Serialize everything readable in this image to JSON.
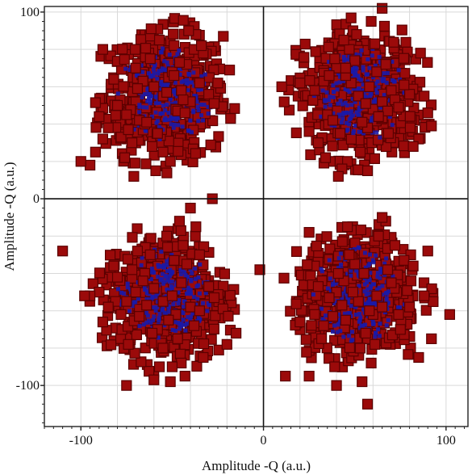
{
  "chart_data": {
    "type": "scatter",
    "title": "",
    "xlabel": "Amplitude -Q (a.u.)",
    "ylabel": "Amplitude -Q (a.u.)",
    "xlim": [
      -120,
      112
    ],
    "ylim": [
      -122,
      103
    ],
    "x_ticks": [
      -100,
      0,
      100
    ],
    "y_ticks": [
      100,
      0,
      -100
    ],
    "grid": true,
    "legend": "none",
    "marker": "square",
    "colors": {
      "fill": "#9b0a0a",
      "edge": "#5a0000",
      "dense_core": "#1a1aa8"
    },
    "series": [
      {
        "x": [
          -55,
          -60,
          -48,
          -70,
          -40,
          -65,
          -52,
          -45,
          -75,
          -35,
          -80,
          -58,
          -42,
          -68,
          -50,
          -30,
          -85,
          -62,
          -47,
          -72,
          -38,
          -55,
          -66,
          -44,
          -78,
          -33,
          -90,
          -53,
          -57,
          -49,
          -61,
          -43,
          -69,
          -37,
          -74,
          -27,
          -82,
          -51,
          -64,
          -46,
          -88,
          -95,
          -100,
          -22,
          -25,
          -88,
          -76,
          -34,
          -59,
          -41,
          -71,
          -92,
          -18
        ],
        "y": [
          55,
          60,
          48,
          70,
          52,
          40,
          65,
          58,
          45,
          62,
          50,
          35,
          72,
          42,
          68,
          56,
          38,
          75,
          47,
          30,
          80,
          25,
          63,
          53,
          33,
          78,
          44,
          57,
          85,
          66,
          28,
          46,
          59,
          88,
          37,
          51,
          64,
          20,
          41,
          73,
          32,
          18,
          20,
          87,
          62,
          80,
          22,
          82,
          15,
          90,
          12,
          25,
          43
        ]
      },
      {
        "x": [
          52,
          48,
          60,
          40,
          65,
          55,
          45,
          70,
          35,
          58,
          42,
          75,
          50,
          38,
          62,
          30,
          80,
          47,
          57,
          68,
          33,
          53,
          44,
          72,
          28,
          85,
          49,
          63,
          39,
          77,
          56,
          25,
          90,
          46,
          61,
          36,
          82,
          54,
          43,
          67,
          20,
          88,
          59,
          41,
          74,
          10,
          92,
          51,
          34,
          86,
          65,
          57,
          45
        ],
        "y": [
          55,
          62,
          48,
          70,
          52,
          40,
          66,
          58,
          45,
          60,
          35,
          50,
          74,
          42,
          68,
          30,
          56,
          80,
          38,
          47,
          63,
          25,
          85,
          53,
          58,
          32,
          90,
          44,
          75,
          61,
          51,
          36,
          46,
          20,
          83,
          66,
          28,
          41,
          16,
          72,
          62,
          55,
          95,
          12,
          49,
          60,
          39,
          88,
          22,
          78,
          102,
          15,
          70
        ]
      },
      {
        "x": [
          -55,
          -60,
          -48,
          -70,
          -40,
          -65,
          -52,
          -45,
          -75,
          -35,
          -80,
          -58,
          -42,
          -68,
          -50,
          -30,
          -85,
          -62,
          -47,
          -72,
          -38,
          -55,
          -66,
          -44,
          -78,
          -33,
          -90,
          -53,
          -57,
          -49,
          -61,
          -43,
          -69,
          -37,
          -74,
          -27,
          -82,
          -51,
          -64,
          -46,
          -88,
          -95,
          -110,
          -28,
          -40,
          -45,
          -20,
          -98,
          -75,
          -60,
          -50,
          -15,
          -35
        ],
        "y": [
          -55,
          -48,
          -62,
          -50,
          -58,
          -40,
          -65,
          -45,
          -55,
          -60,
          -42,
          -70,
          -35,
          -63,
          -52,
          -47,
          -58,
          -30,
          -75,
          -38,
          -68,
          -80,
          -44,
          -25,
          -62,
          -85,
          -50,
          -20,
          -90,
          -33,
          -72,
          -95,
          -28,
          -15,
          -78,
          -53,
          -36,
          -98,
          -57,
          -12,
          -66,
          -52,
          -28,
          0,
          -5,
          -88,
          -78,
          -52,
          -100,
          -97,
          -90,
          -72,
          -30
        ]
      },
      {
        "x": [
          52,
          48,
          60,
          40,
          65,
          55,
          45,
          70,
          35,
          58,
          42,
          75,
          50,
          38,
          62,
          30,
          80,
          47,
          57,
          68,
          33,
          53,
          44,
          72,
          28,
          85,
          49,
          63,
          39,
          77,
          56,
          25,
          90,
          46,
          61,
          36,
          82,
          54,
          43,
          67,
          20,
          88,
          59,
          41,
          74,
          12,
          92,
          57,
          102,
          -2,
          25,
          65,
          40
        ],
        "y": [
          -55,
          -48,
          -62,
          -50,
          -58,
          -40,
          -65,
          -45,
          -55,
          -60,
          -42,
          -70,
          -35,
          -63,
          -52,
          -47,
          -58,
          -30,
          -75,
          -38,
          -68,
          -80,
          -44,
          -25,
          -62,
          -85,
          -50,
          -20,
          -90,
          -33,
          -72,
          -95,
          -28,
          -15,
          -78,
          -53,
          -36,
          -98,
          -57,
          -12,
          -66,
          -52,
          -88,
          -40,
          -62,
          -95,
          -75,
          -110,
          -62,
          -38,
          -18,
          -10,
          -100
        ]
      }
    ],
    "cluster_centers": [
      [
        -54,
        55
      ],
      [
        52,
        56
      ],
      [
        -54,
        -52
      ],
      [
        52,
        -52
      ]
    ],
    "cluster_spread": 17
  }
}
